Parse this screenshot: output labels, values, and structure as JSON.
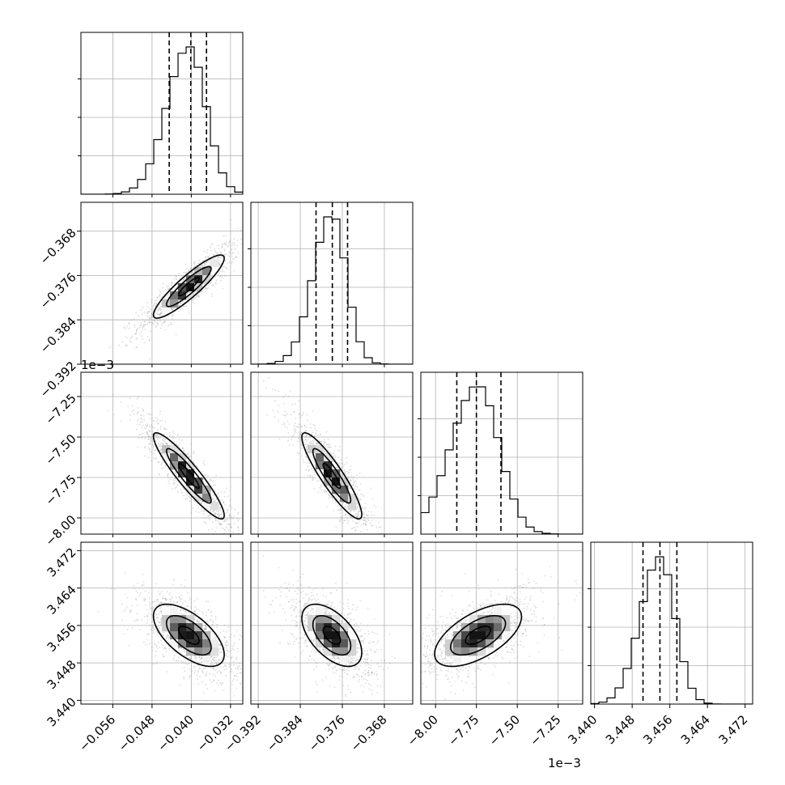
{
  "chart_data": {
    "type": "corner",
    "parameters": [
      {
        "range": [
          -0.0625,
          -0.0295
        ],
        "ticks": [
          -0.056,
          -0.048,
          -0.04,
          -0.032
        ],
        "tick_labels": [
          "−0.056",
          "−0.048",
          "−0.040",
          "−0.032"
        ],
        "quantiles": [
          -0.0445,
          -0.0401,
          -0.0369
        ],
        "mean": -0.0405,
        "sd": 0.0038
      },
      {
        "range": [
          -0.3934,
          -0.3626
        ],
        "ticks": [
          -0.392,
          -0.384,
          -0.376,
          -0.368
        ],
        "tick_labels": [
          "−0.392",
          "−0.384",
          "−0.376",
          "−0.368"
        ],
        "quantiles": [
          -0.381,
          -0.3779,
          -0.375
        ],
        "mean": -0.378,
        "sd": 0.003
      },
      {
        "range": [
          -8.09,
          -7.1
        ],
        "ticks": [
          -8.0,
          -7.75,
          -7.5,
          -7.25
        ],
        "tick_labels": [
          "−8.00",
          "−7.75",
          "−7.50",
          "−7.25"
        ],
        "quantiles": [
          -7.87,
          -7.75,
          -7.6
        ],
        "mean": -7.74,
        "sd": 0.14
      },
      {
        "range": [
          3.4392,
          3.4736
        ],
        "ticks": [
          3.44,
          3.448,
          3.456,
          3.464,
          3.472
        ],
        "tick_labels": [
          "3.440",
          "3.448",
          "3.456",
          "3.464",
          "3.472"
        ],
        "quantiles": [
          3.4503,
          3.4539,
          3.4575
        ],
        "mean": 3.4539,
        "sd": 0.0035
      }
    ],
    "y_ranges": [
      null,
      [
        -0.392,
        -0.3628
      ],
      [
        -8.1,
        -7.1
      ],
      [
        3.4392,
        3.4738
      ]
    ],
    "correlations": [
      [
        0,
        1,
        0.9
      ],
      [
        0,
        2,
        -0.92
      ],
      [
        1,
        2,
        -0.9
      ],
      [
        0,
        3,
        -0.62
      ],
      [
        1,
        3,
        -0.55
      ],
      [
        2,
        3,
        0.6
      ]
    ],
    "offset_labels": {
      "y_row2": "1e−3",
      "x_col2": "1e−3"
    },
    "grid": true,
    "histogram_bins": 20,
    "colors": {
      "contour": "#000000",
      "density": "#000000",
      "points": "#9a9a9a"
    }
  }
}
